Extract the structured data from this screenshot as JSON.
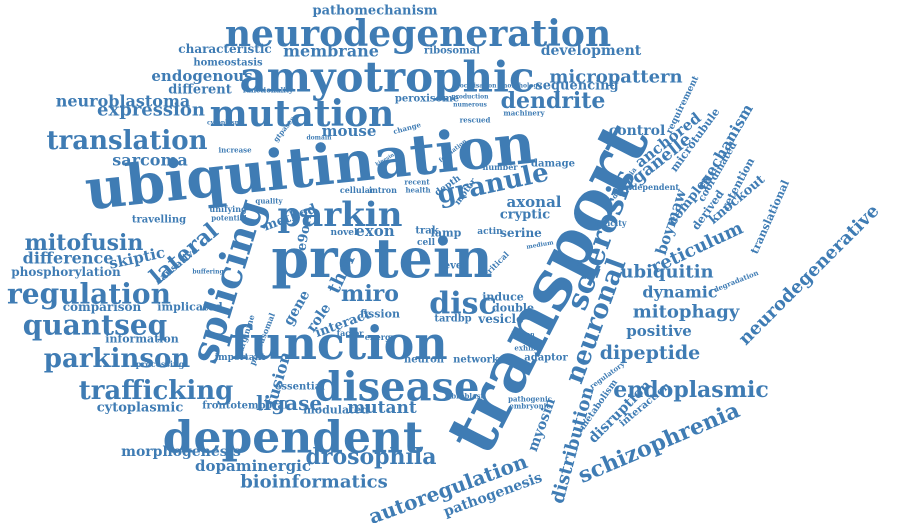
{
  "cloud": {
    "color": "#3f7cb4",
    "background": "#ffffff",
    "words": [
      {
        "text": "pathomechanism"
      },
      {
        "text": "neurodegeneration"
      },
      {
        "text": "characteristic"
      },
      {
        "text": "membrane"
      },
      {
        "text": "ribosomal"
      },
      {
        "text": "development"
      },
      {
        "text": "homeostasis"
      },
      {
        "text": "amyotrophic"
      },
      {
        "text": "endogenous"
      },
      {
        "text": "micropattern"
      },
      {
        "text": "different"
      },
      {
        "text": "functionality"
      },
      {
        "text": "localisation"
      },
      {
        "text": "morphology"
      },
      {
        "text": "sequencing"
      },
      {
        "text": "neuroblastoma"
      },
      {
        "text": "peroxisome"
      },
      {
        "text": "production"
      },
      {
        "text": "numerous"
      },
      {
        "text": "expression"
      },
      {
        "text": "mutation"
      },
      {
        "text": "dendrite"
      },
      {
        "text": "machinery"
      },
      {
        "text": "requirement"
      },
      {
        "text": "cytoplasm"
      },
      {
        "text": "gtpases"
      },
      {
        "text": "rescued"
      },
      {
        "text": "control"
      },
      {
        "text": "translation"
      },
      {
        "text": "mouse"
      },
      {
        "text": "change"
      },
      {
        "text": "domain"
      },
      {
        "text": "increase"
      },
      {
        "text": "sarcoma"
      },
      {
        "text": "ubiquitination"
      },
      {
        "text": "kinesin"
      },
      {
        "text": "formation"
      },
      {
        "text": "transport"
      },
      {
        "text": "anchored"
      },
      {
        "text": "microtubule"
      },
      {
        "text": "mechanism"
      },
      {
        "text": "organelle"
      },
      {
        "text": "number"
      },
      {
        "text": "damage"
      },
      {
        "text": "granule"
      },
      {
        "text": "parkin"
      },
      {
        "text": "coordinated"
      },
      {
        "text": "independent"
      },
      {
        "text": "dementia"
      },
      {
        "text": "boymaw"
      },
      {
        "text": "retention"
      },
      {
        "text": "complex"
      },
      {
        "text": "derived"
      },
      {
        "text": "knockout"
      },
      {
        "text": "translational"
      },
      {
        "text": "recent"
      },
      {
        "text": "health"
      },
      {
        "text": "depth"
      },
      {
        "text": "cellular"
      },
      {
        "text": "intron"
      },
      {
        "text": "quality"
      },
      {
        "text": "motor"
      },
      {
        "text": "axonal"
      },
      {
        "text": "travelling"
      },
      {
        "text": "unifying"
      },
      {
        "text": "potential"
      },
      {
        "text": "method"
      },
      {
        "text": "e9orf"
      },
      {
        "text": "cryptic"
      },
      {
        "text": "toxicity"
      },
      {
        "text": "sclerosis"
      },
      {
        "text": "mitofusin"
      },
      {
        "text": "splicing"
      },
      {
        "text": "lateral"
      },
      {
        "text": "exon"
      },
      {
        "text": "serine"
      },
      {
        "text": "reticulum"
      },
      {
        "text": "neurodegenerative"
      },
      {
        "text": "novel"
      },
      {
        "text": "lamp"
      },
      {
        "text": "actin"
      },
      {
        "text": "trak"
      },
      {
        "text": "cell"
      },
      {
        "text": "difference"
      },
      {
        "text": "skiptic"
      },
      {
        "text": "protein"
      },
      {
        "text": "medium"
      },
      {
        "text": "ubiquitin"
      },
      {
        "text": "phosphorylation"
      },
      {
        "text": "causative"
      },
      {
        "text": "buffering"
      },
      {
        "text": "critical"
      },
      {
        "text": "level"
      },
      {
        "text": "dynamic"
      },
      {
        "text": "regulation"
      },
      {
        "text": "miro"
      },
      {
        "text": "thor"
      },
      {
        "text": "neuronal"
      },
      {
        "text": "degradation"
      },
      {
        "text": "disc"
      },
      {
        "text": "comparison"
      },
      {
        "text": "implicated"
      },
      {
        "text": "role"
      },
      {
        "text": "gene"
      },
      {
        "text": "induce"
      },
      {
        "text": "mitophagy"
      },
      {
        "text": "quantseq"
      },
      {
        "text": "fission"
      },
      {
        "text": "double"
      },
      {
        "text": "positive"
      },
      {
        "text": "information"
      },
      {
        "text": "interact"
      },
      {
        "text": "tardbp"
      },
      {
        "text": "vesicle"
      },
      {
        "text": "function"
      },
      {
        "text": "factor"
      },
      {
        "text": "energy"
      },
      {
        "text": "dipeptide"
      },
      {
        "text": "parkinson"
      },
      {
        "text": "proteasomal"
      },
      {
        "text": "arginine"
      },
      {
        "text": "human"
      },
      {
        "text": "exhibit"
      },
      {
        "text": "processing"
      },
      {
        "text": "important"
      },
      {
        "text": "neuron"
      },
      {
        "text": "network"
      },
      {
        "text": "adaptor"
      },
      {
        "text": "disease"
      },
      {
        "text": "trafficking"
      },
      {
        "text": "fusion"
      },
      {
        "text": "endoplasmic"
      },
      {
        "text": "regulatory"
      },
      {
        "text": "essential"
      },
      {
        "text": "ligase"
      },
      {
        "text": "fibroblast"
      },
      {
        "text": "cytoplasmic"
      },
      {
        "text": "frontotemporal"
      },
      {
        "text": "modulated"
      },
      {
        "text": "mutant"
      },
      {
        "text": "pathogenic"
      },
      {
        "text": "embryonic"
      },
      {
        "text": "interaction"
      },
      {
        "text": "dependent"
      },
      {
        "text": "metabolism"
      },
      {
        "text": "distribution"
      },
      {
        "text": "disruption"
      },
      {
        "text": "myosin"
      },
      {
        "text": "schizophrenia"
      },
      {
        "text": "morphogenesis"
      },
      {
        "text": "drosophila"
      },
      {
        "text": "dopaminergic"
      },
      {
        "text": "bioinformatics"
      },
      {
        "text": "autoregulation"
      },
      {
        "text": "pathogenesis"
      }
    ]
  }
}
